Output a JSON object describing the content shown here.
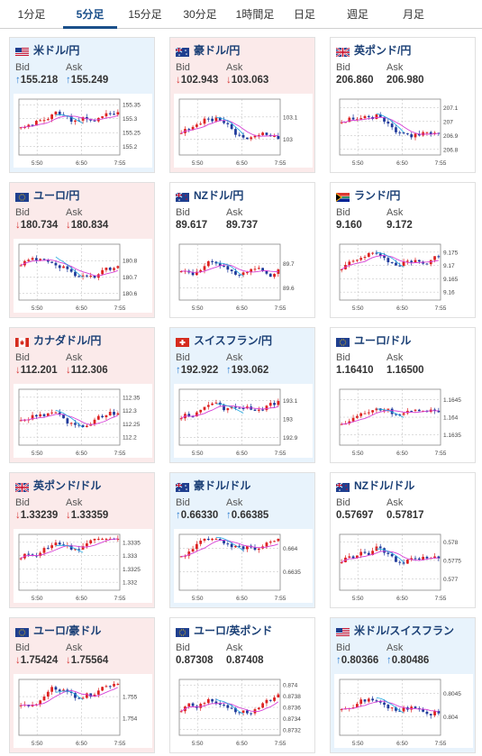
{
  "tabs": [
    {
      "label": "1分足",
      "active": false
    },
    {
      "label": "5分足",
      "active": true
    },
    {
      "label": "15分足",
      "active": false
    },
    {
      "label": "30分足",
      "active": false
    },
    {
      "label": "1時間足",
      "active": false
    },
    {
      "label": "日足",
      "active": false
    },
    {
      "label": "週足",
      "active": false
    },
    {
      "label": "月足",
      "active": false
    }
  ],
  "labels": {
    "bid": "Bid",
    "ask": "Ask"
  },
  "colors": {
    "up_arrow": "#2f7fd2",
    "down_arrow": "#d73a3a",
    "up_bg": "#e8f3fc",
    "down_bg": "#fbeaea",
    "candle_up": "#dd2222",
    "candle_down": "#1f3a9c",
    "ma": "#d63fd6",
    "ma2": "#22a8e0"
  },
  "cards": [
    {
      "pair": "米ドル/円",
      "flag": "us",
      "trend": "up",
      "bid": "155.218",
      "ask": "155.249",
      "chart_data": {
        "type": "candlestick",
        "x_ticks": [
          "5:50",
          "6:50",
          "7:55"
        ],
        "y_ticks": [
          "155.35",
          "155.3",
          "155.25",
          "155.2"
        ],
        "ylim": [
          155.17,
          155.37
        ]
      }
    },
    {
      "pair": "豪ドル/円",
      "flag": "au",
      "trend": "down",
      "bid": "102.943",
      "ask": "103.063",
      "chart_data": {
        "type": "candlestick",
        "x_ticks": [
          "5:50",
          "6:50",
          "7:55"
        ],
        "y_ticks": [
          "103.1",
          "103"
        ],
        "ylim": [
          102.93,
          103.18
        ]
      }
    },
    {
      "pair": "英ポンド/円",
      "flag": "gb",
      "trend": "flat",
      "bid": "206.860",
      "ask": "206.980",
      "chart_data": {
        "type": "candlestick",
        "x_ticks": [
          "5:50",
          "6:50",
          "7:55"
        ],
        "y_ticks": [
          "207.1",
          "207",
          "206.9",
          "206.8"
        ],
        "ylim": [
          206.76,
          207.16
        ]
      }
    },
    {
      "pair": "ユーロ/円",
      "flag": "eu",
      "trend": "down",
      "bid": "180.734",
      "ask": "180.834",
      "chart_data": {
        "type": "candlestick",
        "x_ticks": [
          "5:50",
          "6:50",
          "7:55"
        ],
        "y_ticks": [
          "180.8",
          "180.7",
          "180.6"
        ],
        "ylim": [
          180.56,
          180.9
        ]
      }
    },
    {
      "pair": "NZドル/円",
      "flag": "nz",
      "trend": "flat",
      "bid": "89.617",
      "ask": "89.737",
      "chart_data": {
        "type": "candlestick",
        "x_ticks": [
          "5:50",
          "6:50",
          "7:55"
        ],
        "y_ticks": [
          "89.7",
          "89.6"
        ],
        "ylim": [
          89.55,
          89.78
        ]
      }
    },
    {
      "pair": "ランド/円",
      "flag": "za",
      "trend": "flat",
      "bid": "9.160",
      "ask": "9.172",
      "chart_data": {
        "type": "candlestick",
        "x_ticks": [
          "5:50",
          "6:50",
          "7:55"
        ],
        "y_ticks": [
          "9.175",
          "9.17",
          "9.165",
          "9.16"
        ],
        "ylim": [
          9.157,
          9.178
        ]
      }
    },
    {
      "pair": "カナダドル/円",
      "flag": "ca",
      "trend": "down",
      "bid": "112.201",
      "ask": "112.306",
      "chart_data": {
        "type": "candlestick",
        "x_ticks": [
          "5:50",
          "6:50",
          "7:55"
        ],
        "y_ticks": [
          "112.35",
          "112.3",
          "112.25",
          "112.2"
        ],
        "ylim": [
          112.17,
          112.38
        ]
      }
    },
    {
      "pair": "スイスフラン/円",
      "flag": "ch",
      "trend": "up",
      "bid": "192.922",
      "ask": "193.062",
      "chart_data": {
        "type": "candlestick",
        "x_ticks": [
          "5:50",
          "6:50",
          "7:55"
        ],
        "y_ticks": [
          "193.1",
          "193",
          "192.9"
        ],
        "ylim": [
          192.86,
          193.16
        ]
      }
    },
    {
      "pair": "ユーロ/ドル",
      "flag": "eu",
      "trend": "flat",
      "bid": "1.16410",
      "ask": "1.16500",
      "chart_data": {
        "type": "candlestick",
        "x_ticks": [
          "5:50",
          "6:50",
          "7:55"
        ],
        "y_ticks": [
          "1.1645",
          "1.164",
          "1.1635"
        ],
        "ylim": [
          1.1632,
          1.1648
        ]
      }
    },
    {
      "pair": "英ポンド/ドル",
      "flag": "gb",
      "trend": "down",
      "bid": "1.33239",
      "ask": "1.33359",
      "chart_data": {
        "type": "candlestick",
        "x_ticks": [
          "5:50",
          "6:50",
          "7:55"
        ],
        "y_ticks": [
          "1.3335",
          "1.333",
          "1.3325",
          "1.332"
        ],
        "ylim": [
          1.3317,
          1.3338
        ]
      }
    },
    {
      "pair": "豪ドル/ドル",
      "flag": "au",
      "trend": "up",
      "bid": "0.66330",
      "ask": "0.66385",
      "chart_data": {
        "type": "candlestick",
        "x_ticks": [
          "5:50",
          "6:50",
          "7:55"
        ],
        "y_ticks": [
          "0.664",
          "0.6635"
        ],
        "ylim": [
          0.6631,
          0.6643
        ]
      }
    },
    {
      "pair": "NZドル/ドル",
      "flag": "nz",
      "trend": "flat",
      "bid": "0.57697",
      "ask": "0.57817",
      "chart_data": {
        "type": "candlestick",
        "x_ticks": [
          "5:50",
          "6:50",
          "7:55"
        ],
        "y_ticks": [
          "0.578",
          "0.5775",
          "0.577"
        ],
        "ylim": [
          0.5767,
          0.5782
        ]
      }
    },
    {
      "pair": "ユーロ/豪ドル",
      "flag": "eu",
      "trend": "down",
      "bid": "1.75424",
      "ask": "1.75564",
      "chart_data": {
        "type": "candlestick",
        "x_ticks": [
          "5:50",
          "6:50",
          "7:55"
        ],
        "y_ticks": [
          "1.755",
          "1.754"
        ],
        "ylim": [
          1.7532,
          1.7558
        ]
      }
    },
    {
      "pair": "ユーロ/英ポンド",
      "flag": "eu",
      "trend": "flat",
      "bid": "0.87308",
      "ask": "0.87408",
      "chart_data": {
        "type": "candlestick",
        "x_ticks": [
          "5:50",
          "6:50",
          "7:55"
        ],
        "y_ticks": [
          "0.874",
          "0.8738",
          "0.8736",
          "0.8734",
          "0.8732"
        ],
        "ylim": [
          0.8731,
          0.8741
        ]
      }
    },
    {
      "pair": "米ドル/スイスフラン",
      "flag": "us",
      "trend": "up",
      "bid": "0.80366",
      "ask": "0.80486",
      "chart_data": {
        "type": "candlestick",
        "x_ticks": [
          "5:50",
          "6:50",
          "7:55"
        ],
        "y_ticks": [
          "0.8045",
          "0.804"
        ],
        "ylim": [
          0.8036,
          0.8048
        ]
      }
    }
  ]
}
